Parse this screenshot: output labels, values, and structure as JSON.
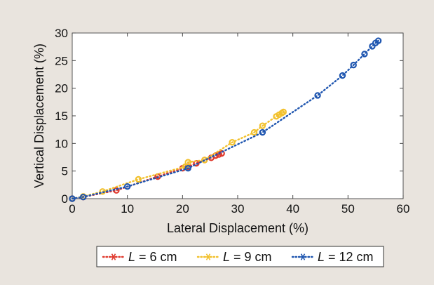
{
  "chart_data": {
    "type": "scatter",
    "title": "",
    "xlabel": "Lateral Displacement (%)",
    "ylabel": "Vertical Displacement (%)",
    "xlim": [
      0,
      60
    ],
    "ylim": [
      0,
      30
    ],
    "xticks": [
      0,
      10,
      20,
      30,
      40,
      50,
      60
    ],
    "yticks": [
      0,
      5,
      10,
      15,
      20,
      25,
      30
    ],
    "grid": false,
    "legend_position": "bottom-center",
    "series": [
      {
        "name_var": "L",
        "name_rest": " = 6 cm",
        "color": "#e03a2e",
        "points": [
          [
            0,
            0
          ],
          [
            2,
            0.3
          ],
          [
            8,
            1.5
          ],
          [
            15.5,
            4
          ],
          [
            20,
            5.5
          ],
          [
            21,
            5.8
          ],
          [
            22.5,
            6.4
          ],
          [
            24,
            7
          ],
          [
            25.2,
            7.4
          ],
          [
            26,
            7.8
          ],
          [
            26.6,
            8
          ],
          [
            27.1,
            8.2
          ]
        ]
      },
      {
        "name_var": "L",
        "name_rest": " = 9 cm",
        "color": "#f2c12e",
        "points": [
          [
            0,
            0
          ],
          [
            2,
            0.4
          ],
          [
            5.5,
            1.3
          ],
          [
            12,
            3.5
          ],
          [
            20.5,
            5.8
          ],
          [
            21,
            6.6
          ],
          [
            24,
            7
          ],
          [
            29,
            10.2
          ],
          [
            33,
            12
          ],
          [
            34.5,
            13.2
          ],
          [
            37,
            14.9
          ],
          [
            37.5,
            15.2
          ],
          [
            38,
            15.5
          ],
          [
            38.3,
            15.7
          ]
        ]
      },
      {
        "name_var": "L",
        "name_rest": " = 12 cm",
        "color": "#1f56b0",
        "points": [
          [
            0,
            0
          ],
          [
            2,
            0.3
          ],
          [
            10,
            2.2
          ],
          [
            21,
            5.5
          ],
          [
            34.5,
            12
          ],
          [
            44.5,
            18.7
          ],
          [
            49,
            22.3
          ],
          [
            51,
            24.2
          ],
          [
            53,
            26.2
          ],
          [
            54.4,
            27.6
          ],
          [
            55,
            28.2
          ],
          [
            55.5,
            28.6
          ]
        ]
      }
    ]
  }
}
